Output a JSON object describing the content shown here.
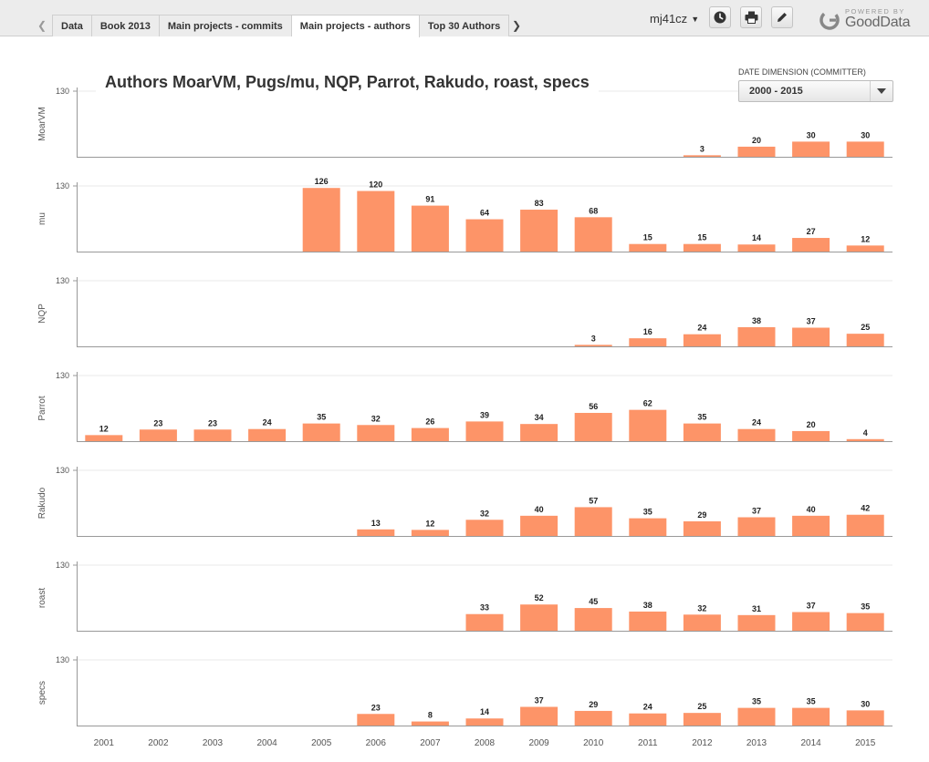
{
  "tabs": [
    {
      "label": "Data",
      "active": false
    },
    {
      "label": "Book 2013",
      "active": false
    },
    {
      "label": "Main projects - commits",
      "active": false
    },
    {
      "label": "Main projects - authors",
      "active": true
    },
    {
      "label": "Top 30 Authors",
      "active": false
    }
  ],
  "header": {
    "user": "mj41cz",
    "logo_top": "POWERED BY",
    "logo_brand": "GoodData"
  },
  "filter": {
    "label": "DATE DIMENSION (COMMITTER)",
    "value": "2000 - 2015"
  },
  "colors": {
    "bar": "#fd9468",
    "grid": "#e8e8e8",
    "axis": "#999999"
  },
  "chart_data": {
    "type": "bar",
    "title": "Authors MoarVM, Pugs/mu, NQP, Parrot, Rakudo, roast, specs",
    "categories": [
      "2001",
      "2002",
      "2003",
      "2004",
      "2005",
      "2006",
      "2007",
      "2008",
      "2009",
      "2010",
      "2011",
      "2012",
      "2013",
      "2014",
      "2015"
    ],
    "ylim": [
      0,
      130
    ],
    "ytick_label": "130",
    "panels": [
      {
        "name": "MoarVM",
        "values": [
          null,
          null,
          null,
          null,
          null,
          null,
          null,
          null,
          null,
          null,
          null,
          3,
          20,
          30,
          30
        ]
      },
      {
        "name": "mu",
        "values": [
          null,
          null,
          null,
          null,
          126,
          120,
          91,
          64,
          83,
          68,
          15,
          15,
          14,
          27,
          12
        ]
      },
      {
        "name": "NQP",
        "values": [
          null,
          null,
          null,
          null,
          null,
          null,
          null,
          null,
          null,
          3,
          16,
          24,
          38,
          37,
          25
        ]
      },
      {
        "name": "Parrot",
        "values": [
          12,
          23,
          23,
          24,
          35,
          32,
          26,
          39,
          34,
          56,
          62,
          35,
          24,
          20,
          4
        ]
      },
      {
        "name": "Rakudo",
        "values": [
          null,
          null,
          null,
          null,
          null,
          13,
          12,
          32,
          40,
          57,
          35,
          29,
          37,
          40,
          42
        ]
      },
      {
        "name": "roast",
        "values": [
          null,
          null,
          null,
          null,
          null,
          null,
          null,
          33,
          52,
          45,
          38,
          32,
          31,
          37,
          35
        ]
      },
      {
        "name": "specs",
        "values": [
          null,
          null,
          null,
          null,
          null,
          23,
          8,
          14,
          37,
          29,
          24,
          25,
          35,
          35,
          30
        ]
      }
    ]
  }
}
